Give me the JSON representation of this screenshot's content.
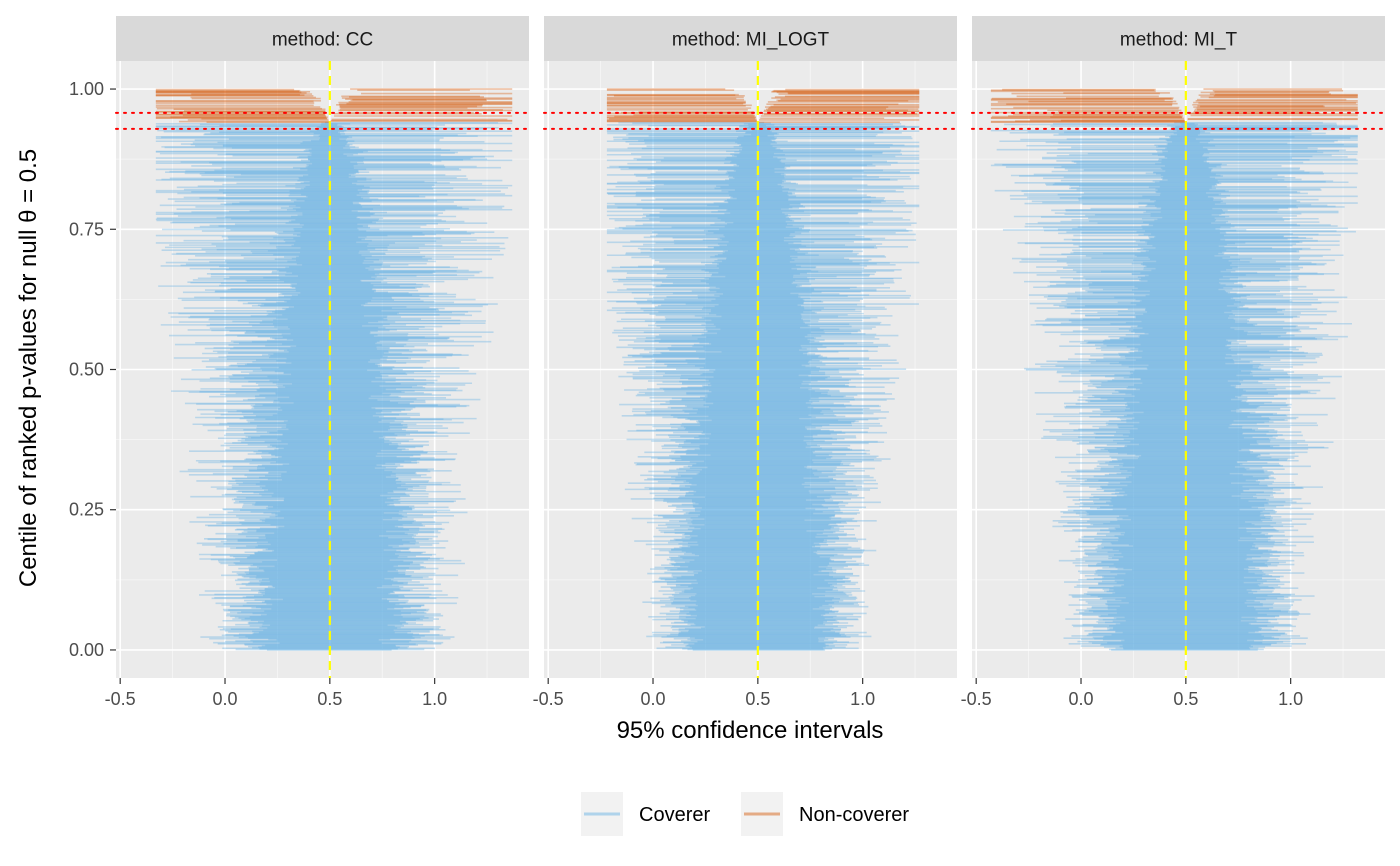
{
  "chart_data": {
    "type": "forest-interval-zipper",
    "xlabel": "95% confidence intervals",
    "ylabel": "Centile of ranked p-values for null θ = 0.5",
    "xlim": [
      -0.52,
      1.45
    ],
    "ylim": [
      -0.05,
      1.05
    ],
    "x_ticks": [
      -0.5,
      0.0,
      0.5,
      1.0
    ],
    "x_tick_labels": [
      "-0.5",
      "0.0",
      "0.5",
      "1.0"
    ],
    "y_ticks": [
      0.0,
      0.25,
      0.5,
      0.75,
      1.0
    ],
    "y_tick_labels": [
      "0.00",
      "0.25",
      "0.50",
      "0.75",
      "1.00"
    ],
    "true_value": 0.5,
    "coverage_mc_band": [
      0.9289,
      0.9576
    ],
    "panels": [
      {
        "label": "method: CC",
        "noncoverage_start": 0.94,
        "half_width_min": 0.24,
        "half_width_max": 0.68,
        "spread": 0.075,
        "min_lo": -0.33,
        "max_hi": 1.37,
        "seed": 11
      },
      {
        "label": "method: MI_LOGT",
        "noncoverage_start": 0.94,
        "half_width_min": 0.26,
        "half_width_max": 0.62,
        "spread": 0.065,
        "min_lo": -0.22,
        "max_hi": 1.27,
        "seed": 23
      },
      {
        "label": "method: MI_T",
        "noncoverage_start": 0.94,
        "half_width_min": 0.26,
        "half_width_max": 0.66,
        "spread": 0.07,
        "min_lo": -0.43,
        "max_hi": 1.32,
        "seed": 37
      }
    ],
    "n_intervals_per_panel": 1000,
    "legend": [
      {
        "label": "Coverer",
        "color": "#5dade2"
      },
      {
        "label": "Non-coverer",
        "color": "#d35400"
      }
    ],
    "colors": {
      "panel_bg": "#ebebeb",
      "grid_major": "#ffffff",
      "strip_bg": "#d9d9d9",
      "true_value_line": "#ffff00",
      "mc_band_line": "#ff0000"
    }
  }
}
